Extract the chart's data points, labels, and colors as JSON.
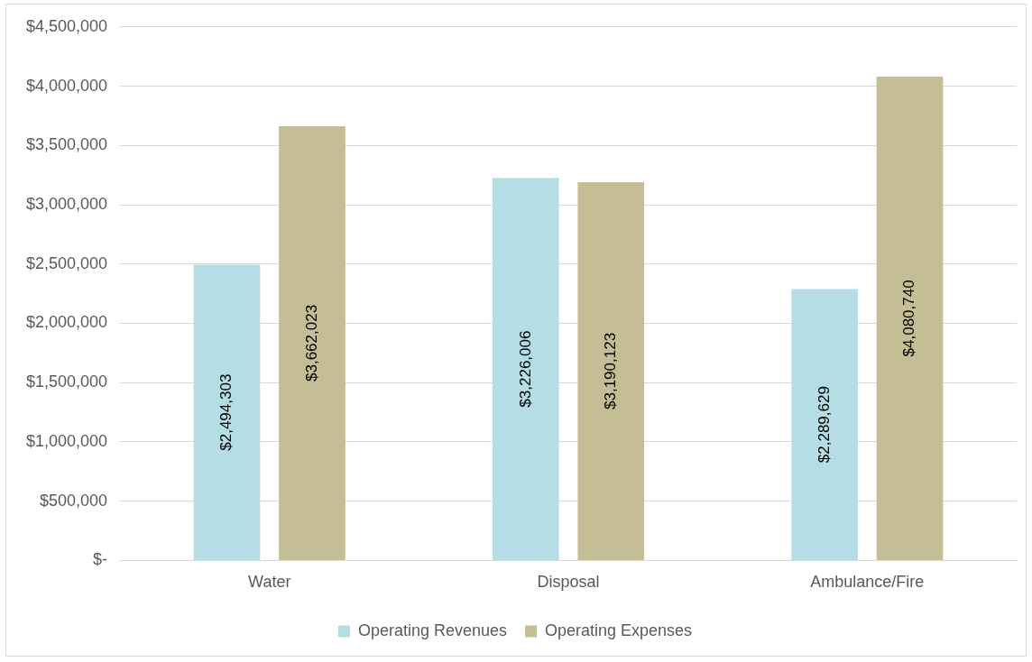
{
  "chart_data": {
    "type": "bar",
    "categories": [
      "Water",
      "Disposal",
      "Ambulance/Fire"
    ],
    "series": [
      {
        "name": "Operating Revenues",
        "color": "#b5dde6",
        "values": [
          2494303,
          3226006,
          2289629
        ],
        "value_labels": [
          "$2,494,303",
          "$3,226,006",
          "$2,289,629"
        ]
      },
      {
        "name": "Operating Expenses",
        "color": "#c5bd94",
        "values": [
          3662023,
          3190123,
          4080740
        ],
        "value_labels": [
          "$3,662,023",
          "$3,190,123",
          "$4,080,740"
        ]
      }
    ],
    "ylim": [
      0,
      4500000
    ],
    "yticks": [
      {
        "value": 0,
        "label": "$-"
      },
      {
        "value": 500000,
        "label": "$500,000"
      },
      {
        "value": 1000000,
        "label": "$1,000,000"
      },
      {
        "value": 1500000,
        "label": "$1,500,000"
      },
      {
        "value": 2000000,
        "label": "$2,000,000"
      },
      {
        "value": 2500000,
        "label": "$2,500,000"
      },
      {
        "value": 3000000,
        "label": "$3,000,000"
      },
      {
        "value": 3500000,
        "label": "$3,500,000"
      },
      {
        "value": 4000000,
        "label": "$4,000,000"
      },
      {
        "value": 4500000,
        "label": "$4,500,000"
      }
    ],
    "grid": "y",
    "legend": "bottom"
  }
}
